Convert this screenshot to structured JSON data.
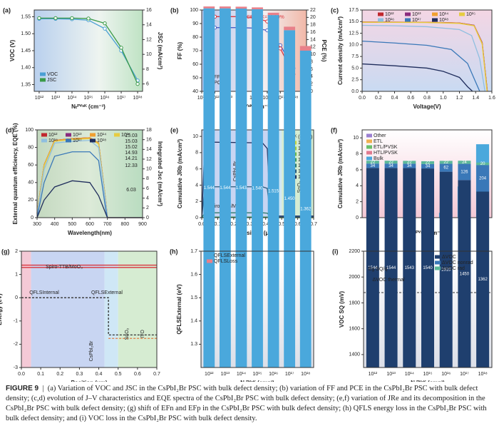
{
  "chart_data": [
    {
      "type": "line",
      "label": "(a)",
      "xlabel": "Nₜᴾⱽˢᴷ (cm⁻³)",
      "ylabel": "VOC (V)",
      "y2label": "JSC (mA/cm²)",
      "xscale": "log",
      "xlim": [
        500000000000,
        2000000000000000000
      ],
      "xticks": [
        {
          "value": 1000000000000,
          "label": "10¹²"
        },
        {
          "value": 10000000000000,
          "label": "10¹³"
        },
        {
          "value": 100000000000000,
          "label": "10¹⁴"
        },
        {
          "value": 1000000000000000,
          "label": "10¹⁵"
        },
        {
          "value": 10000000000000000,
          "label": "10¹⁶"
        },
        {
          "value": 100000000000000000,
          "label": "10¹⁷"
        },
        {
          "value": 1000000000000000000,
          "label": "10¹⁸"
        }
      ],
      "ylim": [
        1.33,
        1.57
      ],
      "yticks": [
        1.35,
        {
          "value": 1.4,
          "label": "1.40"
        },
        1.45,
        {
          "value": 1.5,
          "label": "1.50"
        },
        1.55
      ],
      "y2lim": [
        5,
        16
      ],
      "y2ticks": [
        6,
        8,
        10,
        12,
        14,
        16
      ],
      "x": [
        1000000000000,
        10000000000000,
        100000000000000,
        1000000000000000,
        10000000000000000,
        100000000000000000,
        1000000000000000000
      ],
      "series": [
        {
          "name": "VOC",
          "color": "#4a9fd4",
          "marker": "circle",
          "values": [
            1.544,
            1.544,
            1.543,
            1.54,
            1.515,
            1.45,
            1.362
          ]
        },
        {
          "name": "JSC",
          "color": "#3a9a48",
          "marker": "circle",
          "axis": "y2",
          "values": [
            14.9,
            14.9,
            14.9,
            14.85,
            14.2,
            10.9,
            6.0
          ]
        }
      ]
    },
    {
      "type": "line",
      "label": "(b)",
      "xlabel": "Nₜᴾⱽˢᴷ (cm⁻³)",
      "ylabel": "FF (%)",
      "y2label": "PCE (%)",
      "xscale": "log",
      "xlim": [
        100000000000,
        10000000000000000000
      ],
      "xticks": [
        {
          "value": 100000000000,
          "label": "10¹¹"
        },
        {
          "value": 1000000000000,
          "label": "10¹²"
        },
        {
          "value": 10000000000000,
          "label": "10¹³"
        },
        {
          "value": 100000000000000,
          "label": "10¹⁴"
        },
        {
          "value": 1000000000000000,
          "label": "10¹⁵"
        },
        {
          "value": 10000000000000000,
          "label": "10¹⁶"
        },
        {
          "value": 100000000000000000,
          "label": "10¹⁷"
        },
        {
          "value": 1000000000000000000,
          "label": "10¹⁸"
        },
        {
          "value": 10000000000000000000,
          "label": "10¹⁹"
        }
      ],
      "ylim": [
        40,
        100
      ],
      "yticks": [
        40,
        50,
        60,
        70,
        80,
        90,
        100
      ],
      "y2lim": [
        0,
        22
      ],
      "y2ticks": [
        0,
        2,
        4,
        6,
        8,
        10,
        12,
        14,
        16,
        18,
        20,
        22
      ],
      "x": [
        1000000000000,
        10000000000000,
        100000000000000,
        1000000000000000,
        10000000000000000,
        100000000000000000,
        1000000000000000000
      ],
      "notes": [
        "PCEMAX=20.20%"
      ],
      "series": [
        {
          "name": "FF",
          "color": "#4b5fc4",
          "marker": "circle",
          "values": [
            87,
            87,
            87,
            86.6,
            85,
            74,
            57
          ]
        },
        {
          "name": "PCE",
          "color": "#d9363e",
          "marker": "circle",
          "axis": "y2",
          "values": [
            20.2,
            20.2,
            20.2,
            20.0,
            18.9,
            11.6,
            4.6
          ]
        }
      ]
    },
    {
      "type": "line",
      "label": "(c)",
      "xlabel": "Voltage(V)",
      "ylabel": "Current density (mA/cm²)",
      "xlim": [
        0,
        1.6
      ],
      "xticks": [
        {
          "value": 0,
          "label": "0.0"
        },
        0.2,
        0.4,
        0.6,
        0.8,
        {
          "value": 1,
          "label": "1.0"
        },
        1.2,
        1.4,
        1.6
      ],
      "ylim": [
        0,
        17.5
      ],
      "yticks": [
        {
          "value": 0,
          "label": "0.0"
        },
        2.5,
        {
          "value": 5,
          "label": "5.0"
        },
        7.5,
        {
          "value": 10,
          "label": "10.0"
        },
        12.5,
        {
          "value": 15,
          "label": "15.0"
        },
        17.5
      ],
      "series": [
        {
          "name": "10¹²",
          "color": "#c0282e",
          "x": [
            0,
            0.4,
            0.8,
            1.2,
            1.38,
            1.48,
            1.544
          ],
          "values": [
            14.9,
            14.88,
            14.85,
            14.7,
            14.2,
            10.5,
            0
          ]
        },
        {
          "name": "10¹³",
          "color": "#8a2b7e",
          "x": [
            0,
            0.4,
            0.8,
            1.2,
            1.38,
            1.48,
            1.544
          ],
          "values": [
            14.9,
            14.88,
            14.85,
            14.7,
            14.2,
            10.5,
            0
          ]
        },
        {
          "name": "10¹⁴",
          "color": "#f0a030",
          "x": [
            0,
            0.4,
            0.8,
            1.2,
            1.38,
            1.48,
            1.543
          ],
          "values": [
            14.9,
            14.87,
            14.84,
            14.68,
            14.15,
            10.4,
            0
          ]
        },
        {
          "name": "10¹⁵",
          "color": "#e6cc40",
          "x": [
            0,
            0.4,
            0.8,
            1.2,
            1.38,
            1.48,
            1.54
          ],
          "values": [
            14.85,
            14.83,
            14.8,
            14.6,
            14.1,
            10.2,
            0
          ]
        },
        {
          "name": "10¹⁶",
          "color": "#8fbfe0",
          "x": [
            0,
            0.4,
            0.8,
            1.2,
            1.35,
            1.45,
            1.515
          ],
          "values": [
            14.2,
            14.1,
            13.9,
            13.3,
            12,
            7,
            0
          ]
        },
        {
          "name": "10¹⁷",
          "color": "#3a78b8",
          "x": [
            0,
            0.4,
            0.8,
            1.1,
            1.3,
            1.4,
            1.45
          ],
          "values": [
            10.8,
            10.4,
            9.9,
            9,
            6,
            2,
            0
          ]
        },
        {
          "name": "10¹⁸",
          "color": "#1f2d5c",
          "x": [
            0,
            0.4,
            0.8,
            1.0,
            1.2,
            1.3,
            1.362
          ],
          "values": [
            5.9,
            5.5,
            5,
            4.3,
            3,
            1,
            0
          ]
        }
      ]
    },
    {
      "type": "line",
      "label": "(d)",
      "xlabel": "Wavelength(nm)",
      "ylabel": "External quantum efficiency, EQE (%)",
      "y2label": "Integrated Jsc (mA/cm²)",
      "xlim": [
        300,
        900
      ],
      "xticks": [
        300,
        400,
        500,
        600,
        700,
        800,
        900
      ],
      "ylim": [
        0,
        100
      ],
      "yticks": [
        0,
        20,
        40,
        60,
        80,
        100
      ],
      "y2lim": [
        0,
        18
      ],
      "y2ticks": [
        0,
        2,
        4,
        6,
        8,
        10,
        12,
        14,
        16,
        18
      ],
      "x": [
        300,
        340,
        400,
        500,
        600,
        650,
        690,
        700,
        900
      ],
      "notes": [
        "15.03",
        "15.03",
        "15.02",
        "14.93",
        "14.21",
        "12.33",
        "6.03"
      ],
      "series": [
        {
          "name": "10¹²",
          "color": "#c0282e",
          "values": [
            5,
            60,
            88,
            90,
            91,
            85,
            20,
            0,
            0
          ]
        },
        {
          "name": "10¹³",
          "color": "#8a2b7e",
          "values": [
            5,
            60,
            88,
            90,
            91,
            85,
            20,
            0,
            0
          ]
        },
        {
          "name": "10¹⁴",
          "color": "#f0a030",
          "values": [
            5,
            60,
            88,
            90,
            91,
            85,
            20,
            0,
            0
          ]
        },
        {
          "name": "10¹⁵",
          "color": "#e6cc40",
          "values": [
            5,
            59,
            87,
            89,
            90,
            84,
            20,
            0,
            0
          ]
        },
        {
          "name": "10¹⁶",
          "color": "#8fbfe0",
          "values": [
            3,
            55,
            85,
            87,
            88,
            80,
            18,
            0,
            0
          ]
        },
        {
          "name": "10¹⁷",
          "color": "#3a78b8",
          "values": [
            0,
            40,
            70,
            75,
            75,
            65,
            10,
            0,
            0
          ]
        },
        {
          "name": "10¹⁸",
          "color": "#1f2d5c",
          "values": [
            0,
            20,
            35,
            42,
            40,
            25,
            5,
            0,
            0
          ]
        }
      ]
    },
    {
      "type": "line",
      "label": "(e)",
      "xlabel": "Position (μm)",
      "ylabel": "Cumulative JRb (mA/cm²)",
      "xlim": [
        0,
        0.7
      ],
      "xticks": [
        {
          "value": 0,
          "label": "0.0"
        },
        0.1,
        0.2,
        0.3,
        0.4,
        0.5,
        0.6,
        0.7
      ],
      "ylim": [
        0,
        10.8
      ],
      "yticks": [
        0,
        2,
        4,
        6,
        8,
        10
      ],
      "x": [
        0,
        0.02,
        0.38,
        0.41,
        0.43,
        0.7
      ],
      "notes": [
        "CsPbI₂Br",
        "Spiro-TTB/MoO₃",
        "SnO₂",
        "ITO",
        "Nₜᴾⱽˢᴷ (cm⁻³)"
      ],
      "series": [
        {
          "name": "10¹²",
          "color": "#c9d63a",
          "values": [
            0,
            0.05,
            0.05,
            0.05,
            0,
            0
          ]
        },
        {
          "name": "10¹³",
          "color": "#9ccc3c",
          "values": [
            0,
            0.05,
            0.05,
            0.05,
            0,
            0
          ]
        },
        {
          "name": "10¹⁴",
          "color": "#6cb84a",
          "values": [
            0,
            0.05,
            0.05,
            0.05,
            0,
            0
          ]
        },
        {
          "name": "10¹⁵",
          "color": "#3d9a5a",
          "values": [
            0,
            0.08,
            0.08,
            0.08,
            0.02,
            0.02
          ]
        },
        {
          "name": "10¹⁶",
          "color": "#2c7a6a",
          "values": [
            0,
            0.6,
            0.6,
            0.55,
            0.05,
            0.05
          ]
        },
        {
          "name": "10¹⁷",
          "color": "#2a5a7a",
          "values": [
            0,
            3.8,
            3.8,
            3.6,
            0.1,
            0.1
          ]
        },
        {
          "name": "10¹⁸",
          "color": "#1f2d5c",
          "values": [
            0,
            9.3,
            9.2,
            8.5,
            0.2,
            0.2
          ]
        }
      ]
    },
    {
      "type": "bar",
      "label": "(f)",
      "xlabel": "Nₜᴾⱽˢᴷ (cm⁻³)",
      "ylabel": "Cumulative JRb (mA/cm²)",
      "categories": [
        "10¹²",
        "10¹³",
        "10¹⁴",
        "10¹⁵",
        "10¹⁶",
        "10¹⁷",
        "10¹⁸"
      ],
      "ylim": [
        0,
        11
      ],
      "yticks": [
        0,
        2,
        4,
        6,
        8,
        10
      ],
      "series": [
        {
          "name": "Other",
          "color": "#9b7fd1",
          "values": [
            0,
            0,
            0,
            0,
            0,
            0,
            0
          ]
        },
        {
          "name": "ETL",
          "color": "#f0b050",
          "values": [
            0,
            0,
            0,
            0,
            0,
            0,
            0
          ]
        },
        {
          "name": "ETL/PVSK",
          "color": "#6bbf6b",
          "values": [
            0,
            0,
            0,
            0,
            0,
            0,
            0
          ]
        },
        {
          "name": "HTL/PVSK",
          "color": "#e07a90",
          "values": [
            0,
            0,
            0,
            0,
            0,
            0,
            0
          ]
        },
        {
          "name": "Bulk",
          "color": "#4aa8dc",
          "values": [
            0,
            0,
            0,
            0,
            0.6,
            3.9,
            9.2
          ]
        }
      ]
    },
    {
      "type": "line",
      "label": "(g)",
      "xlabel": "Position (μm)",
      "ylabel": "Energy (eV)",
      "xlim": [
        0,
        0.7
      ],
      "xticks": [
        {
          "value": 0,
          "label": "0.0"
        },
        0.1,
        0.2,
        0.3,
        0.4,
        0.5,
        0.6,
        0.7
      ],
      "ylim": [
        -3,
        2
      ],
      "yticks": [
        -3,
        -2,
        -1,
        0,
        1,
        2
      ],
      "notes": [
        "Spiro-TTB/MoO₃",
        "QFLSInternal",
        "QFLSExternal",
        "CsPbI₂Br",
        "SnO₂",
        "ITO"
      ],
      "series": [
        {
          "color": "#d9363e",
          "x": [
            0,
            0.7
          ],
          "values": [
            1.4,
            1.4
          ]
        },
        {
          "color": "#d9363e",
          "x": [
            0,
            0.7
          ],
          "values": [
            1.3,
            1.3
          ]
        },
        {
          "color": "#333333",
          "dash": true,
          "x": [
            0,
            0.45,
            0.45,
            0.7
          ],
          "values": [
            0,
            0,
            -1.6,
            -1.6
          ]
        },
        {
          "color": "#e07a40",
          "dash": true,
          "x": [
            0.45,
            0.7
          ],
          "values": [
            -1.75,
            -1.75
          ]
        }
      ]
    },
    {
      "type": "bar",
      "label": "(h)",
      "xlabel": "Nₜᴾⱽˢᴷ (cm⁻³)",
      "ylabel": "QFLSExternal (eV)",
      "categories": [
        "10¹²",
        "10¹³",
        "10¹⁴",
        "10¹⁵",
        "10¹⁶",
        "10¹⁷",
        "10¹⁸"
      ],
      "ylim": [
        1.2,
        1.7
      ],
      "yticks": [
        1.3,
        1.4,
        1.5,
        1.6,
        1.7
      ],
      "series": [
        {
          "name": "QFLSExternal",
          "color": "#4aa8dc",
          "values": [
            1.544,
            1.544,
            1.543,
            1.54,
            1.515,
            1.45,
            1.362
          ],
          "value_labels": [
            "1.544",
            "1.544",
            "1.543",
            "1.540",
            "1.515",
            "1.450",
            "1.362"
          ]
        },
        {
          "name": "QFLSLoss",
          "color": "#e8808a",
          "values": [
            0.008,
            0.008,
            0.008,
            0.008,
            0.01,
            0.015,
            0.02
          ]
        }
      ]
    },
    {
      "type": "bar",
      "label": "(i)",
      "xlabel": "Nₜᴾⱽˢᴷ (cm⁻³)",
      "ylabel": "VOC SQ (mV)",
      "categories": [
        "10¹²",
        "10¹³",
        "10¹⁴",
        "10¹⁵",
        "10¹⁶",
        "10¹⁷",
        "10¹⁸"
      ],
      "ylim": [
        1300,
        2200
      ],
      "yticks": [
        1400,
        1600,
        1800,
        2000,
        2200
      ],
      "hline": 1880,
      "notes": [
        "Eg SQ/q",
        "ΔVOC thermal"
      ],
      "series": [
        {
          "name": "ΔVOC",
          "color": "#1f3f6e",
          "show_labels": true,
          "values": [
            1544,
            1544,
            1543,
            1540,
            1515,
            1450,
            1362
          ]
        },
        {
          "name": "ΔVOC nonrad",
          "color": "#3a78b8",
          "show_labels": true,
          "values": [
            34,
            34,
            34,
            34,
            62,
            126,
            204
          ]
        },
        {
          "name": "ΔVOC rad",
          "color": "#5cb89a",
          "show_labels": true,
          "values": [
            22,
            22,
            22,
            22,
            22,
            24,
            20
          ]
        }
      ]
    }
  ],
  "caption": {
    "head": "FIGURE 9",
    "text": "(a) Variation of VOC and JSC in the CsPbI₂Br PSC with bulk defect density; (b) variation of FF and PCE in the CsPbI₂Br PSC with bulk defect density; (c,d) evolution of J–V characteristics and EQE spectra of the CsPbI₂Br PSC with bulk defect density; (e,f) variation of JRe and its decomposition in the CsPbI₂Br PSC with bulk defect density; (g) shift of EFn and EFp in the CsPbI₂Br PSC with bulk defect density; (h) QFLS energy loss in the CsPbI₂Br PSC with bulk defect density; and (i) VOC loss in the CsPbI₂Br PSC with bulk defect density."
  }
}
